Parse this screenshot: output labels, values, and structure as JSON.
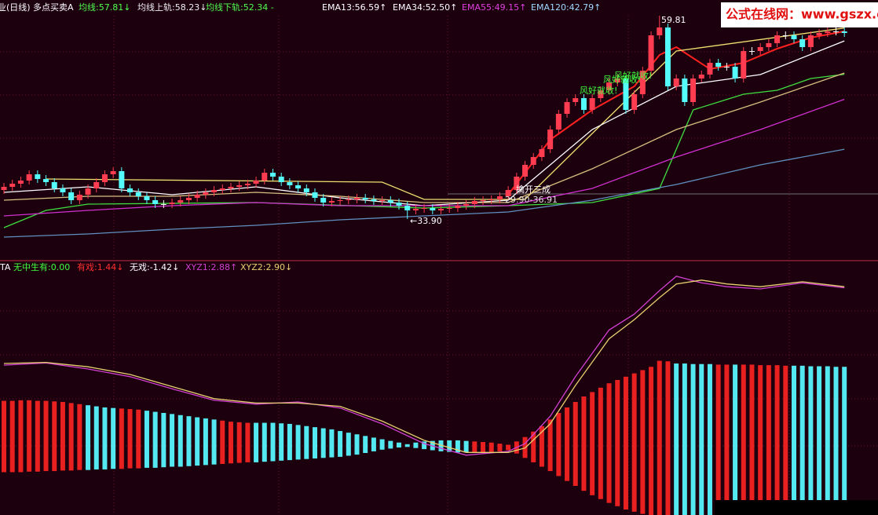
{
  "watermark": "公式在线网：www.gszx.com",
  "chart_data": [
    {
      "type": "candlestick",
      "title": "业(日线)",
      "subtitle": "多点买卖A",
      "xlim": [
        -0.47,
        104.0
      ],
      "ylim": [
        28.8,
        61.8
      ],
      "up_color": "#ff3c50",
      "down_color": "#54fcfc",
      "flat_color": "#ffffff",
      "open": [
        37.6,
        38.0,
        38.4,
        38.8,
        39.6,
        39.0,
        38.6,
        37.8,
        37.3,
        36.3,
        37.0,
        37.8,
        38.6,
        39.6,
        40.0,
        37.8,
        37.3,
        36.8,
        36.3,
        35.8,
        35.8,
        36.0,
        36.3,
        36.6,
        37.0,
        37.3,
        37.6,
        37.8,
        38.0,
        38.2,
        38.4,
        38.8,
        39.8,
        39.3,
        38.6,
        38.2,
        37.8,
        37.3,
        36.6,
        36.0,
        36.2,
        36.3,
        36.4,
        36.6,
        36.4,
        36.2,
        36.3,
        36.0,
        35.6,
        35.0,
        35.2,
        35.3,
        35.0,
        35.2,
        35.3,
        35.6,
        35.8,
        36.2,
        36.3,
        36.4,
        36.8,
        37.6,
        39.3,
        40.8,
        41.8,
        42.8,
        45.3,
        47.3,
        48.8,
        49.3,
        47.8,
        49.3,
        50.3,
        51.3,
        51.8,
        47.8,
        49.8,
        52.8,
        57.3,
        58.3,
        50.8,
        51.8,
        48.8,
        51.8,
        52.3,
        53.8,
        53.3,
        53.3,
        51.8,
        55.3,
        55.3,
        55.8,
        56.3,
        57.3,
        57.3,
        56.8,
        55.8,
        57.3,
        57.6,
        57.8,
        57.8
      ],
      "high": [
        38.5,
        38.9,
        39.3,
        40.1,
        40.1,
        39.5,
        39.1,
        38.3,
        37.8,
        37.5,
        38.3,
        39.1,
        40.1,
        40.5,
        40.5,
        38.3,
        37.8,
        37.3,
        36.8,
        36.3,
        36.5,
        36.8,
        37.1,
        37.5,
        37.8,
        38.1,
        38.3,
        38.5,
        38.7,
        38.9,
        39.3,
        40.3,
        40.3,
        39.8,
        39.1,
        38.7,
        38.3,
        37.8,
        37.1,
        36.7,
        36.8,
        36.9,
        37.1,
        37.1,
        36.9,
        36.8,
        36.8,
        36.5,
        36.1,
        35.7,
        35.8,
        35.8,
        35.7,
        35.8,
        36.1,
        36.3,
        36.7,
        36.8,
        36.9,
        37.3,
        38.1,
        39.8,
        41.3,
        42.3,
        43.3,
        45.8,
        47.8,
        49.3,
        49.8,
        49.8,
        49.8,
        50.8,
        51.8,
        52.3,
        52.3,
        50.3,
        53.3,
        57.8,
        59.81,
        58.8,
        52.3,
        52.3,
        52.3,
        52.8,
        54.3,
        54.3,
        53.8,
        53.8,
        55.8,
        55.8,
        56.3,
        56.8,
        57.8,
        57.8,
        57.8,
        57.3,
        57.8,
        58.1,
        58.3,
        58.3,
        58.3
      ],
      "low": [
        37.1,
        37.5,
        37.9,
        38.3,
        38.5,
        38.1,
        37.3,
        36.8,
        35.8,
        35.8,
        36.5,
        37.3,
        38.1,
        39.1,
        37.3,
        36.8,
        36.3,
        35.8,
        35.3,
        35.3,
        35.3,
        35.5,
        35.8,
        36.1,
        36.5,
        36.8,
        37.1,
        37.3,
        37.5,
        37.7,
        37.9,
        38.3,
        38.8,
        38.1,
        37.7,
        37.3,
        36.8,
        36.1,
        35.5,
        35.5,
        35.7,
        35.8,
        35.9,
        35.9,
        35.7,
        35.7,
        35.5,
        35.1,
        33.9,
        34.5,
        34.7,
        34.5,
        34.5,
        34.7,
        34.8,
        35.1,
        35.3,
        35.7,
        35.8,
        35.9,
        36.3,
        37.1,
        38.8,
        40.3,
        41.3,
        42.3,
        44.8,
        46.8,
        48.3,
        47.3,
        47.3,
        48.8,
        49.8,
        50.8,
        47.3,
        47.3,
        49.3,
        52.3,
        56.8,
        50.3,
        50.3,
        48.3,
        48.3,
        51.3,
        51.8,
        52.8,
        52.8,
        51.3,
        51.3,
        54.8,
        54.8,
        55.3,
        55.8,
        56.8,
        56.3,
        55.3,
        55.3,
        56.8,
        57.1,
        57.3,
        57.1
      ],
      "close": [
        38.0,
        38.4,
        38.8,
        39.6,
        39.0,
        38.6,
        37.8,
        37.3,
        36.3,
        37.0,
        37.8,
        38.6,
        39.6,
        40.0,
        37.8,
        37.3,
        36.8,
        36.3,
        35.8,
        35.8,
        36.0,
        36.3,
        36.6,
        37.0,
        37.3,
        37.6,
        37.8,
        38.0,
        38.2,
        38.4,
        38.8,
        39.8,
        39.3,
        38.6,
        38.2,
        37.8,
        37.3,
        36.6,
        36.0,
        36.2,
        36.3,
        36.4,
        36.6,
        36.4,
        36.2,
        36.3,
        36.0,
        35.6,
        35.0,
        35.2,
        35.3,
        35.0,
        35.2,
        35.3,
        35.6,
        35.8,
        36.2,
        36.3,
        36.4,
        36.8,
        37.6,
        39.3,
        40.8,
        41.8,
        42.8,
        45.3,
        47.3,
        48.8,
        49.3,
        47.8,
        49.3,
        50.3,
        51.3,
        51.8,
        47.8,
        49.8,
        52.8,
        57.3,
        58.3,
        50.8,
        51.8,
        48.8,
        51.8,
        52.3,
        53.8,
        53.3,
        53.3,
        51.8,
        55.3,
        55.3,
        55.8,
        56.3,
        57.3,
        57.3,
        56.8,
        55.8,
        57.3,
        57.6,
        57.8,
        57.8,
        57.6
      ],
      "series": [
        {
          "name": "均线:57.81↓",
          "color": "#ff2020",
          "label_color": "#50ff50",
          "x": [
            60,
            65,
            70,
            75,
            78,
            80,
            84,
            88,
            92,
            96,
            100
          ],
          "values": [
            37.0,
            44.0,
            47.8,
            50.8,
            54.8,
            55.8,
            53.0,
            53.8,
            55.6,
            57.0,
            57.81
          ]
        },
        {
          "name": "均线上轨:58.23↓",
          "color": "#f0e070",
          "label_color": "#f0f0f0",
          "x": [
            5,
            45,
            50,
            62,
            80,
            100
          ],
          "values": [
            39.0,
            38.6,
            36.4,
            36.4,
            55.3,
            58.23
          ]
        },
        {
          "name": "均线下轨:52.34 -",
          "color": "#40e040",
          "label_color": "#50ff50",
          "x": [
            0,
            5,
            10,
            30,
            50,
            60,
            70,
            78,
            82,
            88,
            92,
            96,
            100
          ],
          "values": [
            32.8,
            35.0,
            35.8,
            36.0,
            35.3,
            35.6,
            36.0,
            37.8,
            47.8,
            49.8,
            50.3,
            51.8,
            52.34
          ]
        },
        {
          "name": "EMA13:56.59↑",
          "color": "#ffffff",
          "label_color": "#ffffff",
          "x": [
            0,
            10,
            20,
            30,
            40,
            50,
            60,
            70,
            80,
            90,
            100
          ],
          "values": [
            37.3,
            38.0,
            37.0,
            38.0,
            36.6,
            35.6,
            36.3,
            45.3,
            50.8,
            52.3,
            56.59
          ]
        },
        {
          "name": "EMA34:52.50↑",
          "color": "#d8c080",
          "label_color": "#ffffff",
          "x": [
            0,
            10,
            20,
            30,
            40,
            50,
            60,
            70,
            80,
            90,
            100
          ],
          "values": [
            36.3,
            36.8,
            36.8,
            37.3,
            36.8,
            36.0,
            36.0,
            40.3,
            45.3,
            48.8,
            52.5
          ]
        },
        {
          "name": "EMA55:49.15↑",
          "color": "#d030d0",
          "label_color": "#e040e0",
          "x": [
            0,
            10,
            20,
            30,
            40,
            50,
            60,
            70,
            80,
            90,
            100
          ],
          "values": [
            34.3,
            35.0,
            35.6,
            36.0,
            35.6,
            35.6,
            35.6,
            37.8,
            41.8,
            45.3,
            49.15
          ]
        },
        {
          "name": "EMA120:42.79↑",
          "color": "#6090c0",
          "label_color": "#a0d8ff",
          "x": [
            0,
            10,
            20,
            30,
            40,
            50,
            60,
            70,
            80,
            90,
            100
          ],
          "values": [
            31.6,
            32.0,
            32.6,
            33.1,
            33.8,
            34.3,
            34.8,
            36.3,
            38.3,
            40.8,
            42.79
          ]
        }
      ],
      "annotations": [
        {
          "text": "59.81",
          "color": "#ffffff"
        },
        {
          "text": "←33.90",
          "color": "#ffffff"
        },
        {
          "text": "风好就收!",
          "color": "#40ff40"
        },
        {
          "text": "风好就收!",
          "color": "#40ff40"
        },
        {
          "text": "风好就收!",
          "color": "#40ff40"
        },
        {
          "text": "擒开三成",
          "color": "#ffffff"
        },
        {
          "text": "29.90-36.91",
          "color": "#e0e0e0"
        }
      ]
    },
    {
      "type": "bar",
      "title": "TA",
      "subtitle": "无中生有:0.00",
      "subtitle_color": "#40ff40",
      "xlim": [
        -0.47,
        104.0
      ],
      "ylim": [
        -1.26,
        3.36
      ],
      "series": [
        {
          "name": "有戏:1.44↓",
          "color": "#ff3030",
          "values": [
            0.82,
            0.82,
            0.83,
            0.83,
            0.82,
            0.82,
            0.81,
            0.8,
            0.78,
            0.76,
            0.74,
            0.72,
            0.7,
            0.69,
            0.68,
            0.67,
            0.66,
            0.64,
            0.62,
            0.6,
            0.58,
            0.56,
            0.54,
            0.52,
            0.5,
            0.48,
            0.46,
            0.44,
            0.43,
            0.42,
            0.42,
            0.42,
            0.42,
            0.41,
            0.4,
            0.38,
            0.36,
            0.34,
            0.32,
            0.3,
            0.27,
            0.24,
            0.21,
            0.18,
            0.15,
            0.12,
            0.09,
            0.06,
            0.03,
            0.06,
            0.08,
            0.09,
            0.1,
            0.1,
            0.1,
            0.09,
            0.08,
            0.07,
            0.06,
            0.04,
            0.02,
            0.08,
            0.16,
            0.26,
            0.36,
            0.48,
            0.6,
            0.7,
            0.8,
            0.9,
            0.98,
            1.06,
            1.14,
            1.2,
            1.26,
            1.32,
            1.38,
            1.44,
            1.55,
            1.54,
            1.5,
            1.5,
            1.49,
            1.49,
            1.49,
            1.48,
            1.48,
            1.48,
            1.48,
            1.48,
            1.47,
            1.47,
            1.47,
            1.46,
            1.46,
            1.46,
            1.45,
            1.45,
            1.45,
            1.44,
            1.44
          ]
        },
        {
          "name": "无戏:-1.42↓",
          "color": "#ffffff",
          "values": [
            -0.48,
            -0.48,
            -0.48,
            -0.47,
            -0.47,
            -0.46,
            -0.46,
            -0.45,
            -0.45,
            -0.44,
            -0.44,
            -0.43,
            -0.43,
            -0.42,
            -0.42,
            -0.41,
            -0.41,
            -0.4,
            -0.4,
            -0.39,
            -0.38,
            -0.38,
            -0.37,
            -0.36,
            -0.35,
            -0.34,
            -0.33,
            -0.32,
            -0.31,
            -0.3,
            -0.3,
            -0.29,
            -0.28,
            -0.27,
            -0.26,
            -0.25,
            -0.24,
            -0.23,
            -0.22,
            -0.21,
            -0.2,
            -0.18,
            -0.16,
            -0.13,
            -0.1,
            -0.07,
            -0.05,
            -0.03,
            -0.02,
            -0.04,
            -0.06,
            -0.08,
            -0.1,
            -0.11,
            -0.12,
            -0.12,
            -0.12,
            -0.12,
            -0.11,
            -0.1,
            -0.08,
            -0.14,
            -0.22,
            -0.3,
            -0.38,
            -0.46,
            -0.55,
            -0.64,
            -0.73,
            -0.82,
            -0.9,
            -0.97,
            -1.04,
            -1.1,
            -1.16,
            -1.2,
            -1.24,
            -1.28,
            -1.32,
            -1.36,
            -1.4,
            -1.42,
            -1.43,
            -1.44,
            -1.44,
            -1.44,
            -1.44,
            -1.44,
            -1.43,
            -1.43,
            -1.43,
            -1.43,
            -1.43,
            -1.43,
            -1.42,
            -1.42,
            -1.42,
            -1.42,
            -1.42,
            -1.42,
            -1.42
          ]
        }
      ],
      "bar_colors": [
        "#e82020",
        "#e82020",
        "#e82020",
        "#e82020",
        "#e82020",
        "#e82020",
        "#e82020",
        "#e82020",
        "#e82020",
        "#e82020",
        "#54e8f0",
        "#54e8f0",
        "#54e8f0",
        "#54e8f0",
        "#e82020",
        "#e82020",
        "#e82020",
        "#54e8f0",
        "#54e8f0",
        "#54e8f0",
        "#54e8f0",
        "#54e8f0",
        "#54e8f0",
        "#54e8f0",
        "#54e8f0",
        "#54e8f0",
        "#e82020",
        "#e82020",
        "#e82020",
        "#e82020",
        "#54e8f0",
        "#54e8f0",
        "#54e8f0",
        "#54e8f0",
        "#54e8f0",
        "#54e8f0",
        "#54e8f0",
        "#54e8f0",
        "#54e8f0",
        "#54e8f0",
        "#54e8f0",
        "#54e8f0",
        "#54e8f0",
        "#54e8f0",
        "#54e8f0",
        "#54e8f0",
        "#54e8f0",
        "#54e8f0",
        "#54e8f0",
        "#54e8f0",
        "#54e8f0",
        "#54e8f0",
        "#54e8f0",
        "#54e8f0",
        "#54e8f0",
        "#54e8f0",
        "#e82020",
        "#e82020",
        "#e82020",
        "#e82020",
        "#e82020",
        "#e82020",
        "#e82020",
        "#e82020",
        "#e82020",
        "#e82020",
        "#e82020",
        "#e82020",
        "#e82020",
        "#e82020",
        "#e82020",
        "#e82020",
        "#e82020",
        "#e82020",
        "#e82020",
        "#e82020",
        "#e82020",
        "#e82020",
        "#e82020",
        "#e82020",
        "#54e8f0",
        "#54e8f0",
        "#54e8f0",
        "#54e8f0",
        "#54e8f0",
        "#e82020",
        "#e82020",
        "#54e8f0",
        "#e82020",
        "#e82020",
        "#e82020",
        "#e82020",
        "#e82020",
        "#e82020",
        "#54e8f0",
        "#54e8f0",
        "#54e8f0",
        "#54e8f0",
        "#54e8f0",
        "#54e8f0",
        "#54e8f0"
      ],
      "lines": [
        {
          "name": "XYZ1:2.88↑",
          "color": "#d040d0",
          "x": [
            0,
            5,
            10,
            15,
            20,
            25,
            30,
            35,
            40,
            45,
            50,
            55,
            60,
            62,
            65,
            68,
            72,
            75,
            78,
            80,
            83,
            86,
            90,
            95,
            100
          ],
          "values": [
            1.47,
            1.51,
            1.4,
            1.26,
            1.04,
            0.83,
            0.76,
            0.8,
            0.69,
            0.4,
            0.04,
            -0.17,
            -0.1,
            0.04,
            0.54,
            1.26,
            2.11,
            2.4,
            2.83,
            3.09,
            2.97,
            2.9,
            2.86,
            2.97,
            2.88
          ]
        },
        {
          "name": "XYZ2:2.90↓",
          "color": "#e8d070",
          "x": [
            0,
            5,
            10,
            15,
            20,
            25,
            30,
            35,
            40,
            45,
            50,
            55,
            60,
            62,
            65,
            68,
            72,
            75,
            78,
            80,
            83,
            86,
            90,
            95,
            100
          ],
          "values": [
            1.5,
            1.52,
            1.44,
            1.3,
            1.08,
            0.86,
            0.78,
            0.78,
            0.72,
            0.45,
            0.1,
            -0.12,
            -0.12,
            -0.04,
            0.4,
            1.1,
            1.95,
            2.3,
            2.7,
            2.95,
            3.02,
            2.95,
            2.9,
            2.99,
            2.9
          ]
        }
      ]
    }
  ]
}
